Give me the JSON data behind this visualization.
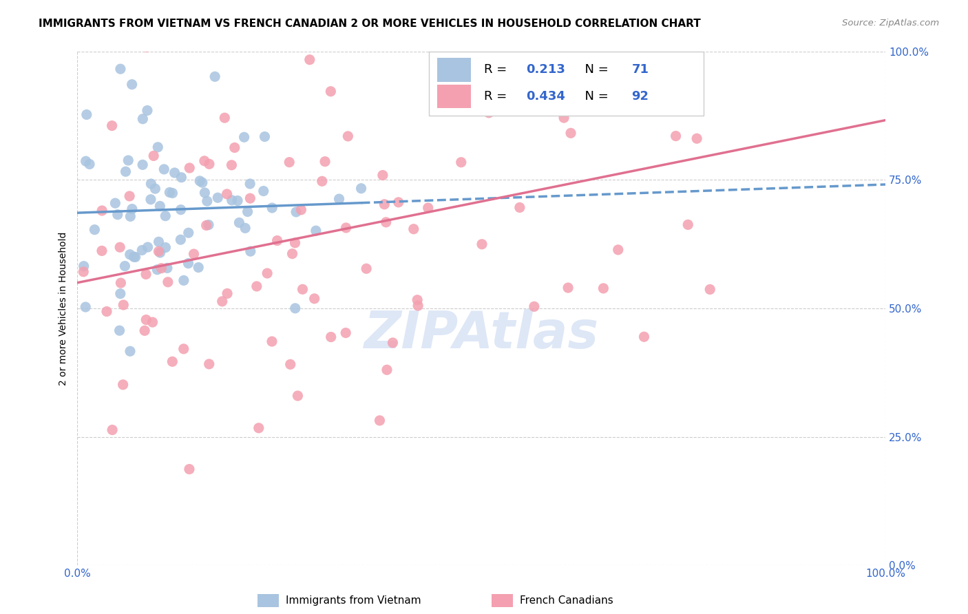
{
  "title": "IMMIGRANTS FROM VIETNAM VS FRENCH CANADIAN 2 OR MORE VEHICLES IN HOUSEHOLD CORRELATION CHART",
  "source": "Source: ZipAtlas.com",
  "ylabel": "2 or more Vehicles in Household",
  "xlim": [
    0,
    1.0
  ],
  "ylim": [
    0,
    1.0
  ],
  "ytick_vals": [
    0.0,
    0.25,
    0.5,
    0.75,
    1.0
  ],
  "ytick_labels": [
    "0.0%",
    "25.0%",
    "50.0%",
    "75.0%",
    "100.0%"
  ],
  "xtick_vals": [
    0.0,
    1.0
  ],
  "xtick_labels": [
    "0.0%",
    "100.0%"
  ],
  "blue_R": 0.213,
  "blue_N": 71,
  "pink_R": 0.434,
  "pink_N": 92,
  "blue_color": "#a8c4e0",
  "pink_color": "#f4a0b0",
  "blue_line_color": "#6699cc",
  "pink_line_color": "#e07090",
  "legend_label_blue": "Immigrants from Vietnam",
  "legend_label_pink": "French Canadians",
  "watermark": "ZIPAtlas",
  "watermark_color": "#c8d8f0",
  "text_blue": "#3366cc",
  "grid_color": "#cccccc",
  "grid_style": "--"
}
